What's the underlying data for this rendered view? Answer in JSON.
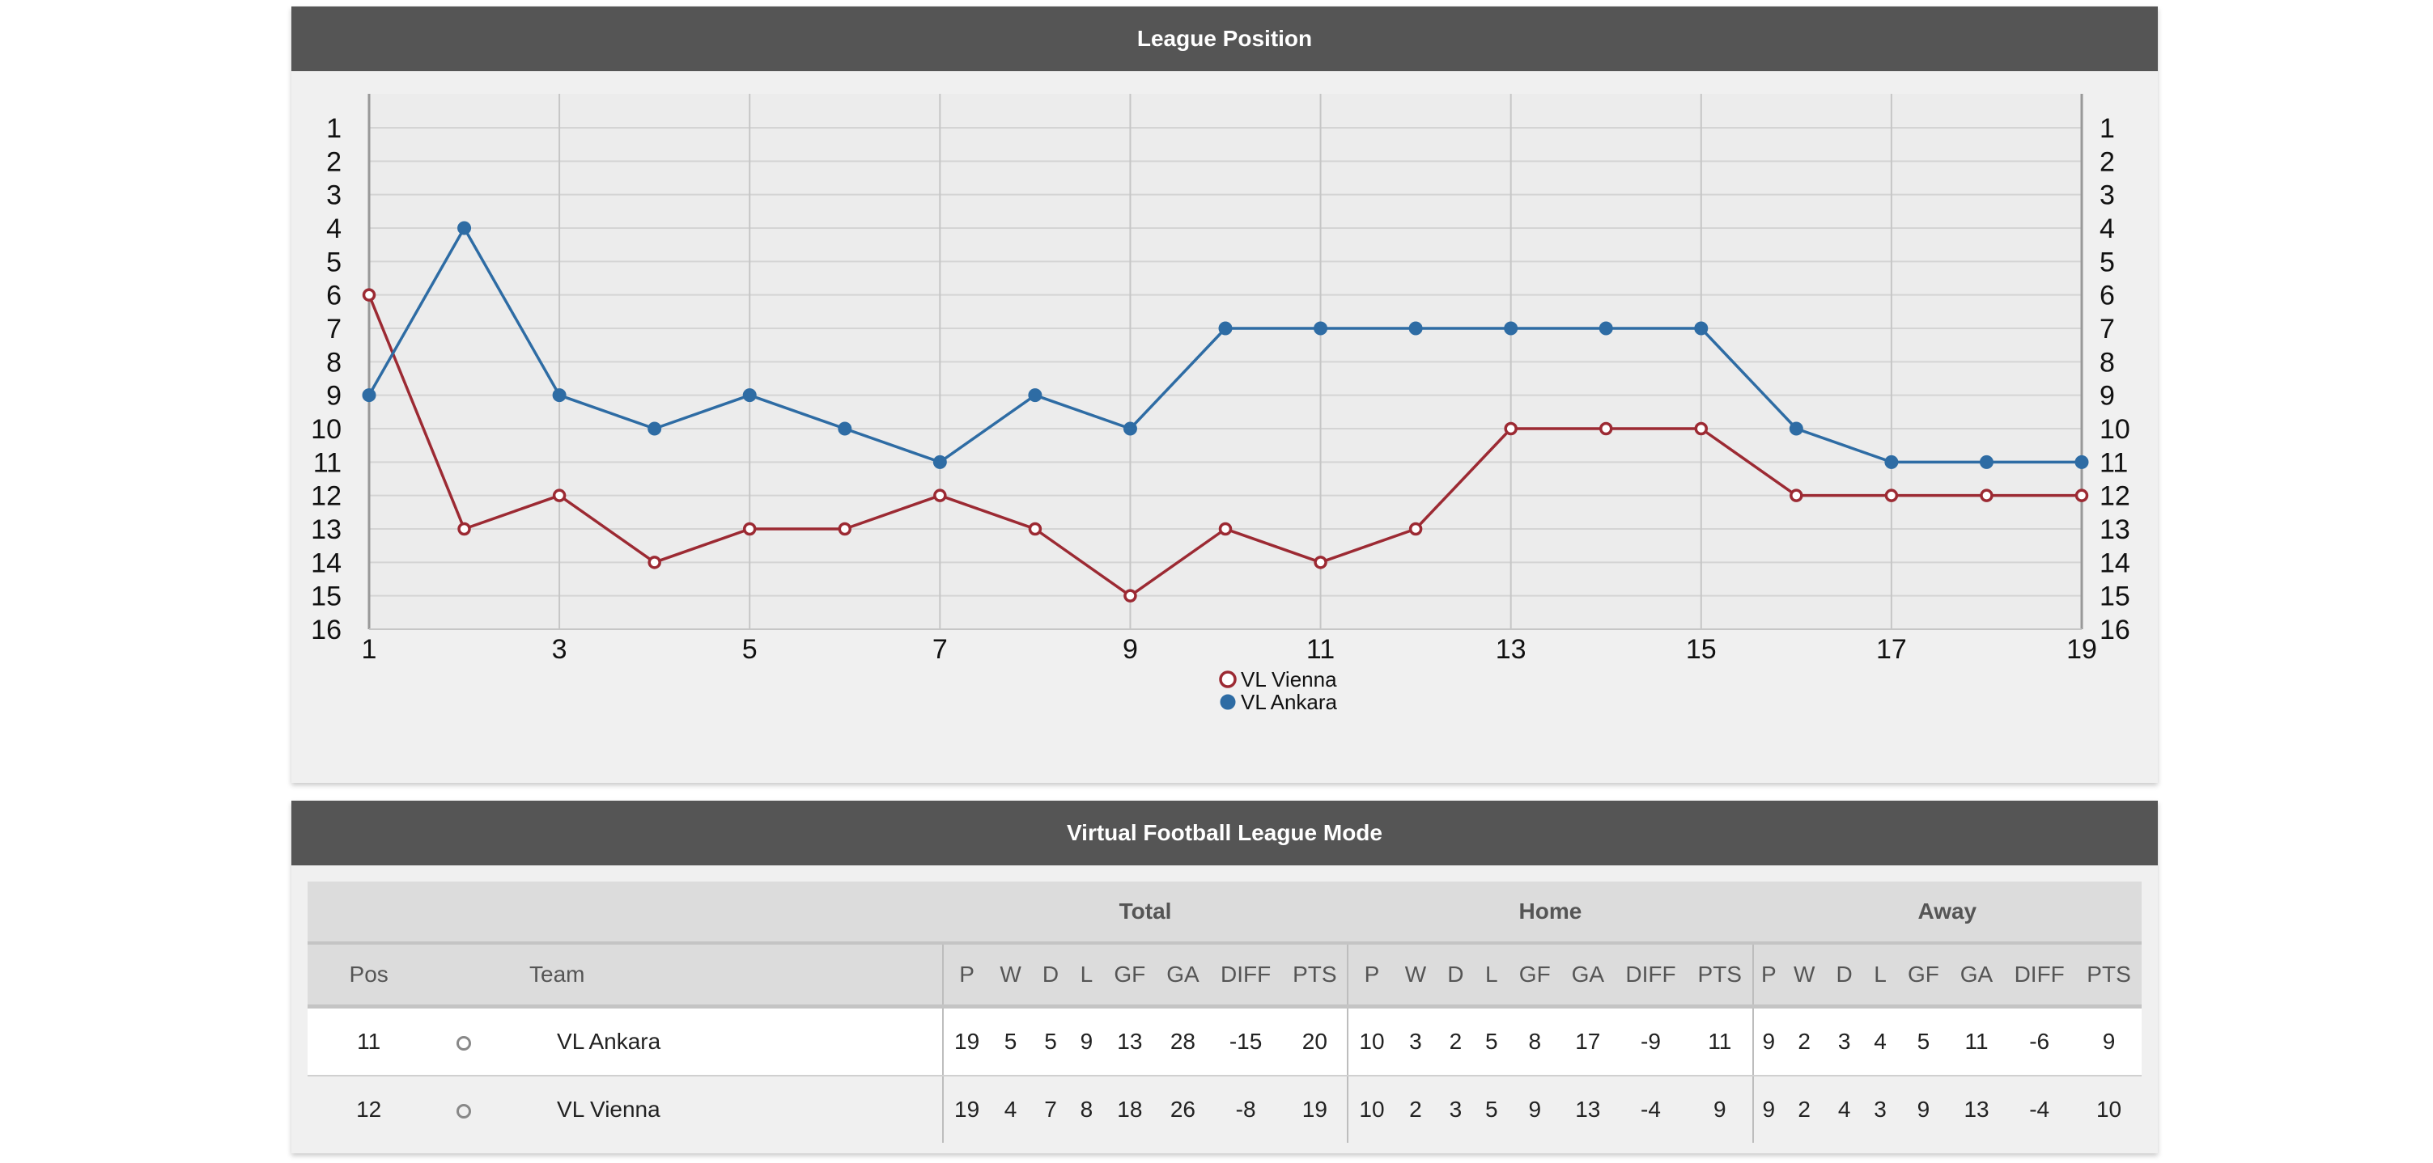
{
  "chart_panel": {
    "title": "League Position"
  },
  "chart_data": {
    "type": "line",
    "title": "League Position",
    "x": [
      1,
      2,
      3,
      4,
      5,
      6,
      7,
      8,
      9,
      10,
      11,
      12,
      13,
      14,
      15,
      16,
      17,
      18,
      19
    ],
    "x_tick_labels": [
      "1",
      "3",
      "5",
      "7",
      "9",
      "11",
      "13",
      "15",
      "17",
      "19"
    ],
    "y_tick_labels": [
      "1",
      "2",
      "3",
      "4",
      "5",
      "6",
      "7",
      "8",
      "9",
      "10",
      "11",
      "12",
      "13",
      "14",
      "15",
      "16"
    ],
    "ylim": [
      1,
      16
    ],
    "y_inverted": true,
    "y_axis_both_sides": true,
    "grid": true,
    "legend_position": "bottom-center",
    "series": [
      {
        "name": "VL Vienna",
        "color": "#9c2a33",
        "marker": "hollow-circle",
        "values": [
          6,
          13,
          12,
          14,
          13,
          13,
          12,
          13,
          15,
          13,
          14,
          13,
          10,
          10,
          10,
          12,
          12,
          12,
          12
        ]
      },
      {
        "name": "VL Ankara",
        "color": "#2e6ca4",
        "marker": "filled-circle",
        "values": [
          9,
          4,
          9,
          10,
          9,
          10,
          11,
          9,
          10,
          7,
          7,
          7,
          7,
          7,
          7,
          10,
          11,
          11,
          11
        ]
      }
    ]
  },
  "table_panel": {
    "title": "Virtual Football League Mode",
    "groups": {
      "total": "Total",
      "home": "Home",
      "away": "Away"
    },
    "columns": {
      "pos": "Pos",
      "team": "Team",
      "stats": [
        "P",
        "W",
        "D",
        "L",
        "GF",
        "GA",
        "DIFF",
        "PTS"
      ]
    },
    "rows": [
      {
        "pos": "11",
        "team": "VL Ankara",
        "total": [
          "19",
          "5",
          "5",
          "9",
          "13",
          "28",
          "-15",
          "20"
        ],
        "home": [
          "10",
          "3",
          "2",
          "5",
          "8",
          "17",
          "-9",
          "11"
        ],
        "away": [
          "9",
          "2",
          "3",
          "4",
          "5",
          "11",
          "-6",
          "9"
        ]
      },
      {
        "pos": "12",
        "team": "VL Vienna",
        "total": [
          "19",
          "4",
          "7",
          "8",
          "18",
          "26",
          "-8",
          "19"
        ],
        "home": [
          "10",
          "2",
          "3",
          "5",
          "9",
          "13",
          "-4",
          "9"
        ],
        "away": [
          "9",
          "2",
          "4",
          "3",
          "9",
          "13",
          "-4",
          "10"
        ]
      }
    ]
  },
  "colors": {
    "header_bg": "#555555",
    "panel_bg": "#f0f0f0",
    "table_head_bg": "#dcdcdc"
  }
}
